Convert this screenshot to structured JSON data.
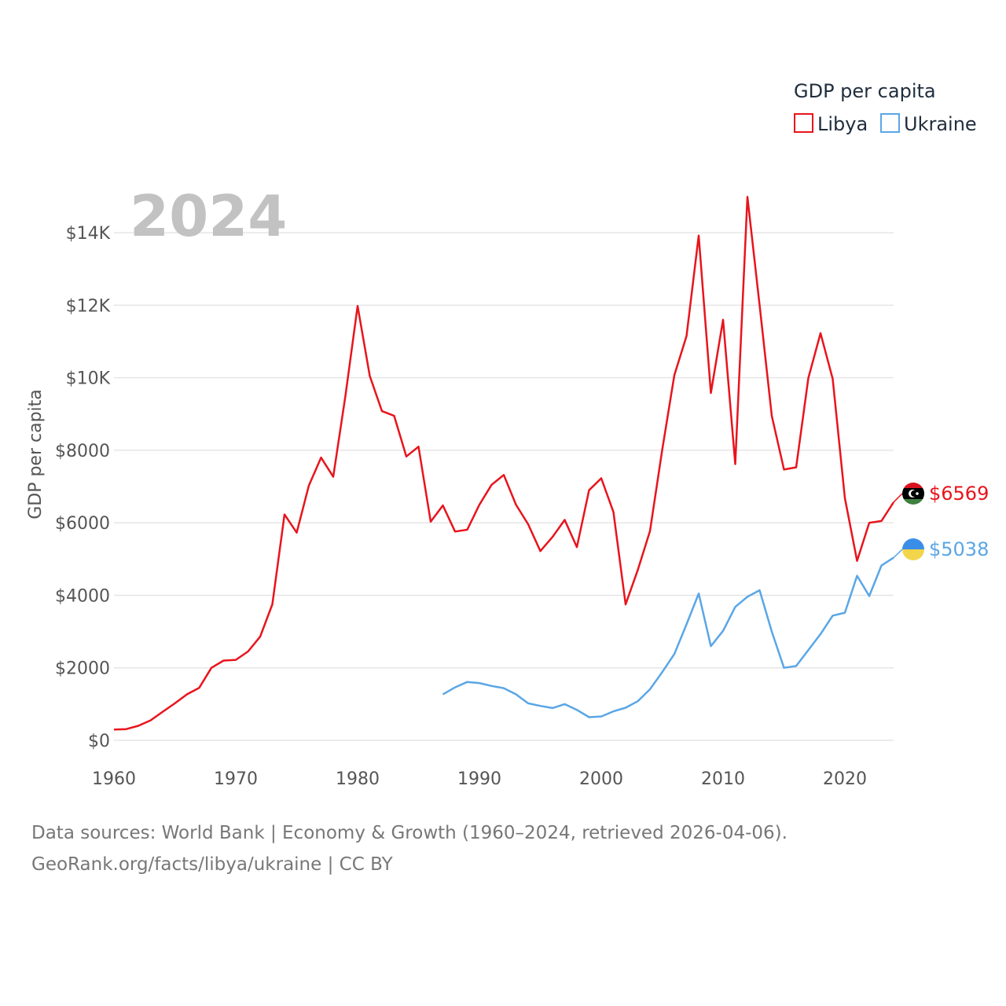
{
  "chart_data": {
    "type": "line",
    "year_label": "2024",
    "ylabel": "GDP per capita",
    "ylim": [
      0,
      15000
    ],
    "xlim": [
      1960,
      2024
    ],
    "y_ticks": [
      0,
      2000,
      4000,
      6000,
      8000,
      10000,
      12000,
      14000
    ],
    "y_tick_labels": [
      "$0",
      "$2000",
      "$4000",
      "$6000",
      "$8000",
      "$10K",
      "$12K",
      "$14K"
    ],
    "x_ticks": [
      1960,
      1970,
      1980,
      1990,
      2000,
      2010,
      2020
    ],
    "x_tick_labels": [
      "1960",
      "1970",
      "1980",
      "1990",
      "2000",
      "2010",
      "2020"
    ],
    "legend": {
      "title": "GDP per capita",
      "position": "top-right"
    },
    "series": [
      {
        "name": "Libya",
        "color": "#e8141c",
        "end_label": "$6569",
        "flag_colors": [
          "#d8121f",
          "#000000",
          "#3f7f3f"
        ],
        "x": [
          1960,
          1961,
          1962,
          1963,
          1964,
          1965,
          1966,
          1967,
          1968,
          1969,
          1970,
          1971,
          1972,
          1973,
          1974,
          1975,
          1976,
          1977,
          1978,
          1979,
          1980,
          1981,
          1982,
          1983,
          1984,
          1985,
          1986,
          1987,
          1988,
          1989,
          1990,
          1991,
          1992,
          1993,
          1994,
          1995,
          1996,
          1997,
          1998,
          1999,
          2000,
          2001,
          2002,
          2003,
          2004,
          2005,
          2006,
          2007,
          2008,
          2009,
          2010,
          2011,
          2012,
          2013,
          2014,
          2015,
          2016,
          2017,
          2018,
          2019,
          2020,
          2021,
          2022,
          2023,
          2024
        ],
        "values": [
          300,
          310,
          400,
          550,
          790,
          1020,
          1270,
          1450,
          2000,
          2200,
          2220,
          2450,
          2860,
          3750,
          6230,
          5730,
          7030,
          7800,
          7270,
          9500,
          11980,
          10050,
          9080,
          8950,
          7830,
          8100,
          6030,
          6480,
          5760,
          5810,
          6500,
          7050,
          7320,
          6500,
          5960,
          5220,
          5610,
          6080,
          5330,
          6900,
          7230,
          6300,
          3750,
          4700,
          5770,
          8000,
          10070,
          11150,
          13920,
          9580,
          11600,
          7620,
          14990,
          12000,
          8950,
          7470,
          7530,
          9990,
          11230,
          9970,
          6680,
          4950,
          6000,
          6050,
          6569
        ]
      },
      {
        "name": "Ukraine",
        "color": "#5aa6e6",
        "end_label": "$5038",
        "flag_colors": [
          "#3b8ee8",
          "#f2d54a"
        ],
        "x": [
          1987,
          1988,
          1989,
          1990,
          1991,
          1992,
          1993,
          1994,
          1995,
          1996,
          1997,
          1998,
          1999,
          2000,
          2001,
          2002,
          2003,
          2004,
          2005,
          2006,
          2007,
          2008,
          2009,
          2010,
          2011,
          2012,
          2013,
          2014,
          2015,
          2016,
          2017,
          2018,
          2019,
          2020,
          2021,
          2022,
          2023,
          2024
        ],
        "values": [
          1270,
          1460,
          1610,
          1580,
          1500,
          1440,
          1270,
          1020,
          950,
          890,
          1000,
          840,
          640,
          660,
          800,
          900,
          1080,
          1410,
          1880,
          2380,
          3200,
          4050,
          2600,
          3020,
          3680,
          3960,
          4140,
          3000,
          2000,
          2050,
          2490,
          2930,
          3440,
          3520,
          4540,
          3980,
          4820,
          5038
        ]
      }
    ]
  },
  "footer": {
    "line1": "Data sources: World Bank | Economy & Growth (1960–2024, retrieved 2026-04-06).",
    "line2": "GeoRank.org/facts/libya/ukraine | CC BY"
  }
}
